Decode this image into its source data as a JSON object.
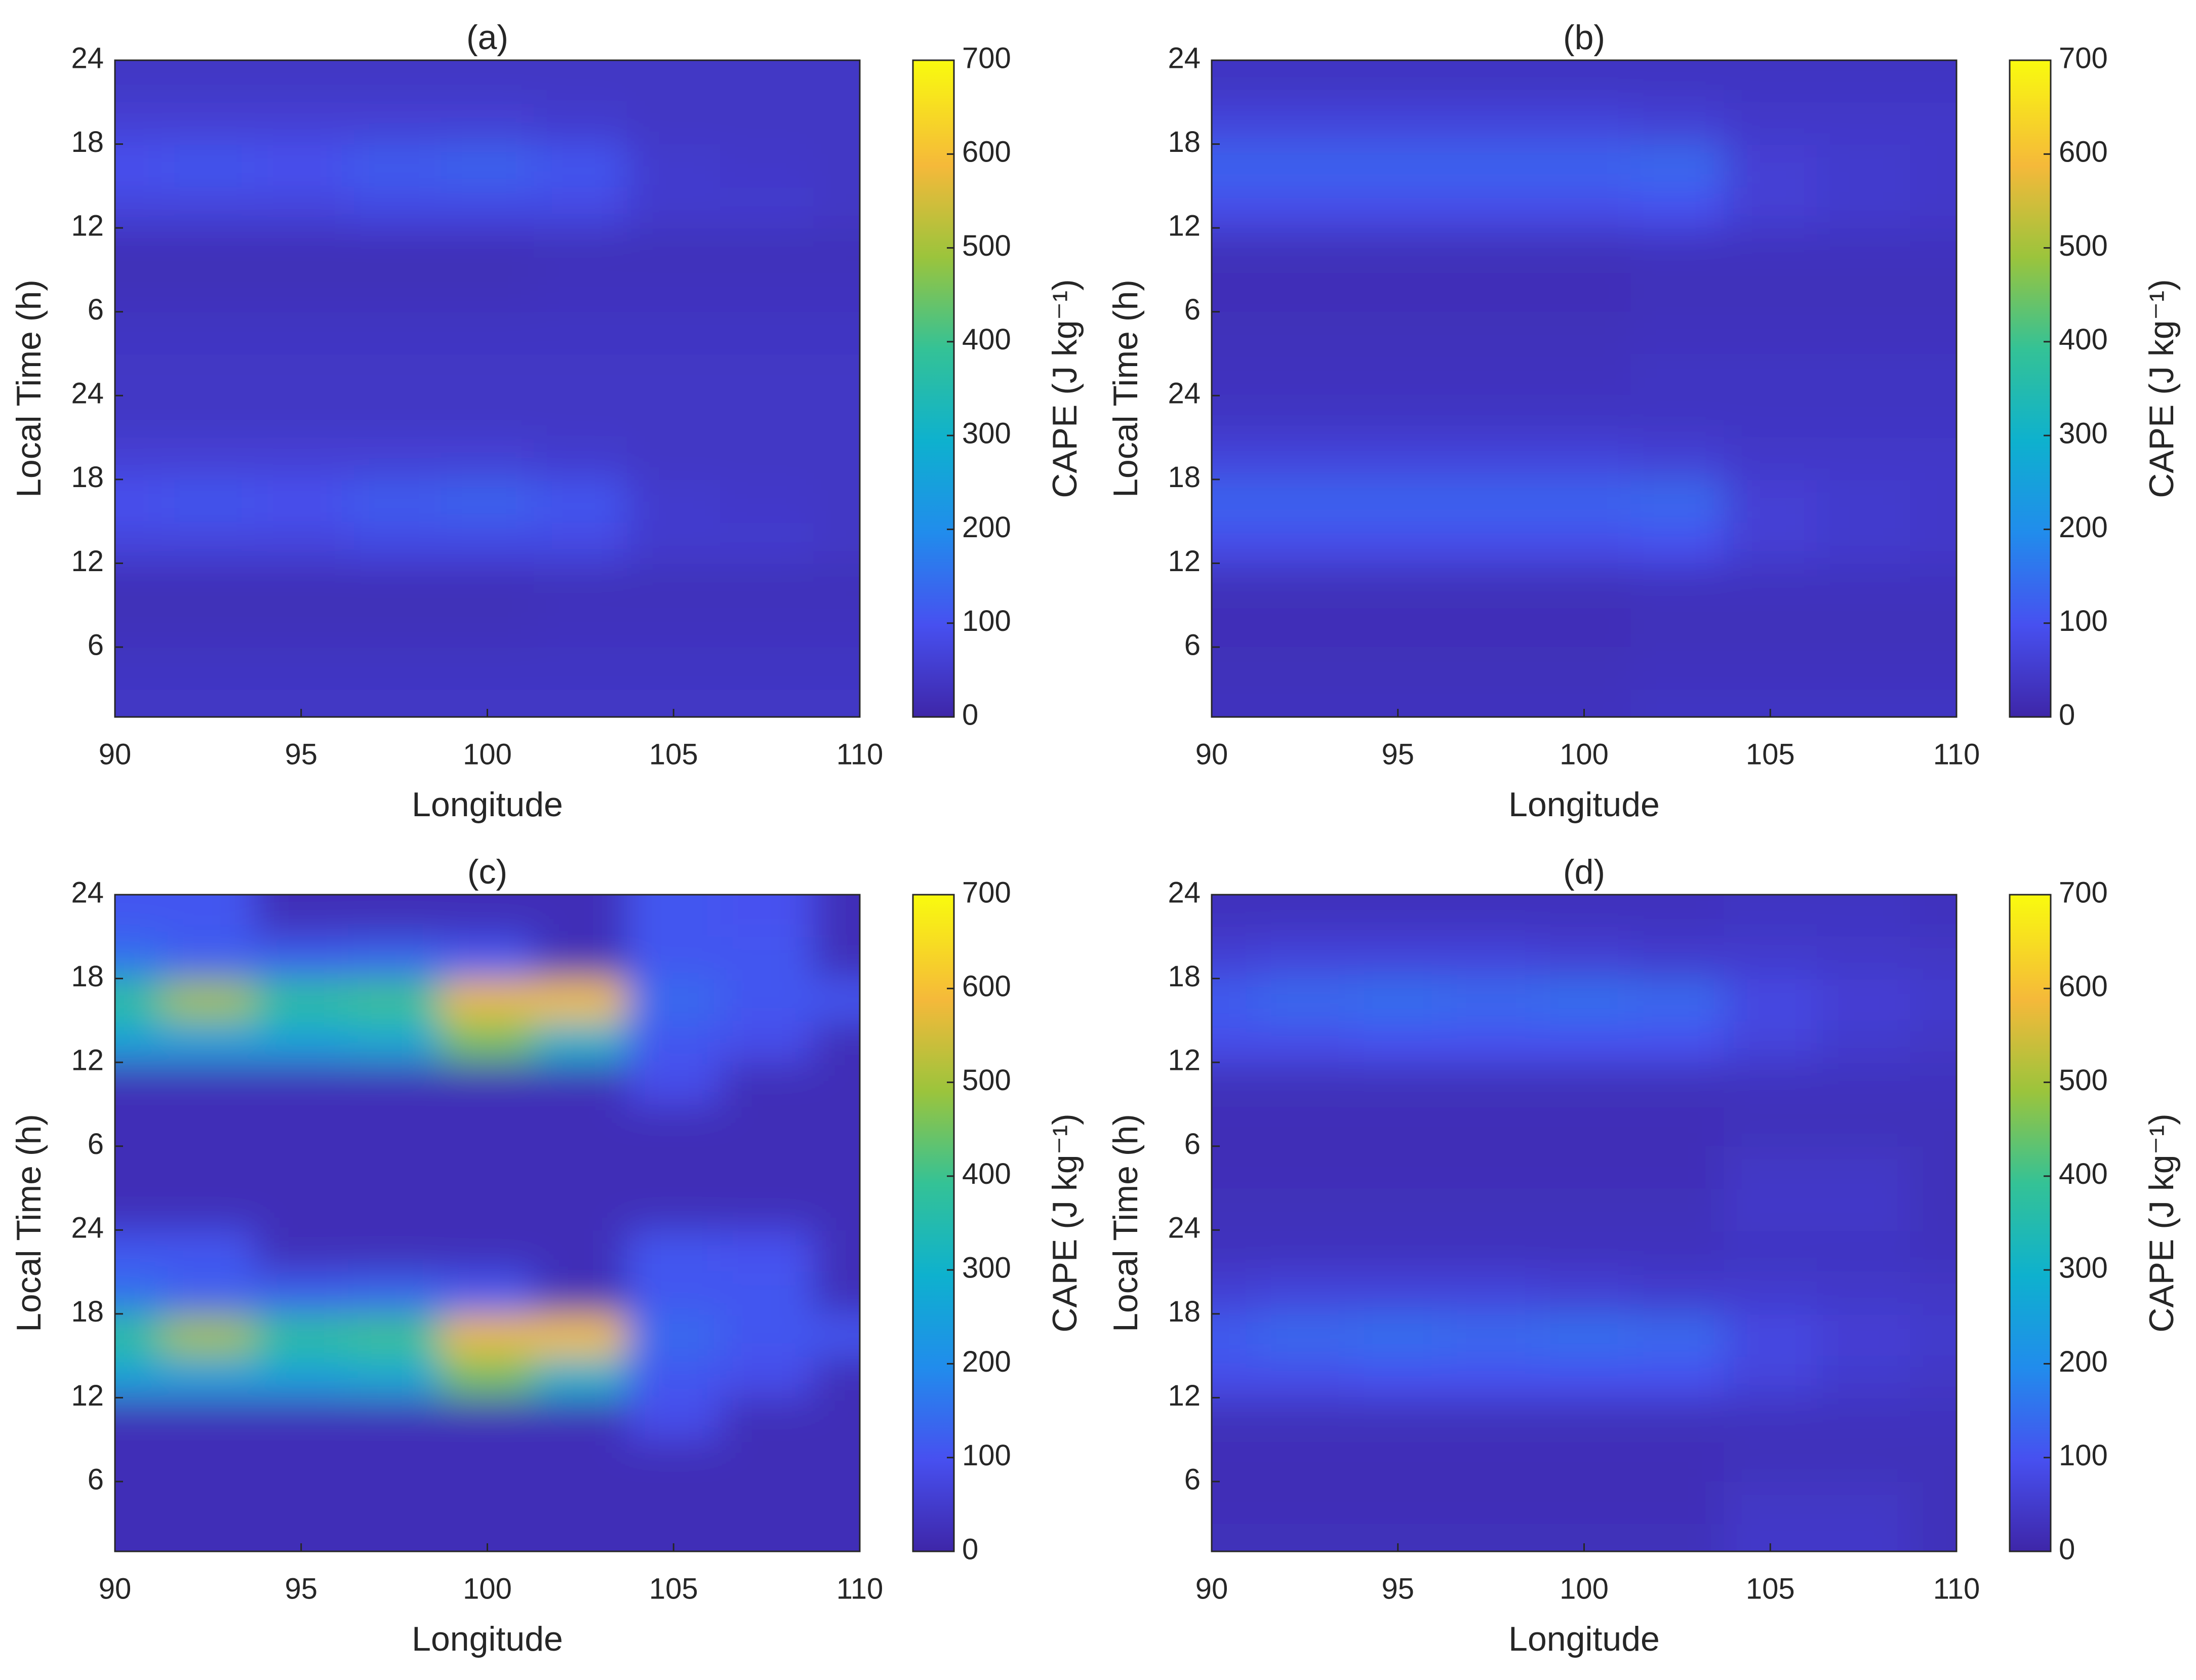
{
  "chart_data": [
    {
      "type": "contour",
      "title": "(a)",
      "x_label": "Longitude",
      "y_label": "Local Time (h)",
      "colorbar_label": "CAPE (J kg⁻¹)",
      "colormap": "parula",
      "lon": [
        90,
        92.5,
        95,
        97.5,
        100,
        102.5,
        105,
        107.5,
        110
      ],
      "hours": [
        1.5,
        4.5,
        7.5,
        10.5,
        13.5,
        16.5,
        19.5,
        22.5
      ],
      "z": [
        [
          40,
          40,
          40,
          40,
          40,
          40,
          40,
          40,
          40
        ],
        [
          35,
          35,
          35,
          35,
          35,
          35,
          35,
          35,
          35
        ],
        [
          25,
          25,
          25,
          25,
          25,
          30,
          30,
          30,
          30
        ],
        [
          20,
          20,
          20,
          20,
          20,
          25,
          25,
          25,
          25
        ],
        [
          70,
          70,
          70,
          80,
          80,
          80,
          50,
          50,
          40
        ],
        [
          100,
          110,
          100,
          120,
          130,
          110,
          50,
          45,
          40
        ],
        [
          60,
          60,
          60,
          60,
          60,
          50,
          40,
          40,
          40
        ],
        [
          40,
          40,
          40,
          40,
          40,
          40,
          40,
          40,
          40
        ]
      ],
      "xlim": [
        90,
        110
      ],
      "ylim": [
        1,
        48
      ],
      "xticks": [
        90,
        95,
        100,
        105,
        110
      ],
      "yticks": [
        6,
        12,
        18,
        24,
        {
          "value": 30,
          "label": "6"
        },
        {
          "value": 36,
          "label": "12"
        },
        {
          "value": 42,
          "label": "18"
        },
        {
          "value": 48,
          "label": "24"
        }
      ],
      "clim": [
        0,
        700
      ],
      "cticks": [
        0,
        100,
        200,
        300,
        400,
        500,
        600,
        700
      ]
    },
    {
      "type": "contour",
      "title": "(b)",
      "x_label": "Longitude",
      "y_label": "Local Time (h)",
      "colorbar_label": "CAPE (J kg⁻¹)",
      "colormap": "parula",
      "lon": [
        90,
        92.5,
        95,
        97.5,
        100,
        102.5,
        105,
        107.5,
        110
      ],
      "hours": [
        1.5,
        4.5,
        7.5,
        10.5,
        13.5,
        16.5,
        19.5,
        22.5
      ],
      "z": [
        [
          30,
          30,
          30,
          30,
          30,
          35,
          35,
          35,
          35
        ],
        [
          25,
          25,
          25,
          25,
          25,
          30,
          30,
          30,
          30
        ],
        [
          20,
          20,
          20,
          20,
          20,
          25,
          25,
          25,
          25
        ],
        [
          25,
          25,
          25,
          25,
          25,
          30,
          30,
          30,
          30
        ],
        [
          90,
          90,
          90,
          90,
          90,
          100,
          60,
          50,
          45
        ],
        [
          130,
          130,
          130,
          130,
          130,
          140,
          60,
          50,
          45
        ],
        [
          70,
          70,
          70,
          70,
          70,
          60,
          45,
          45,
          45
        ],
        [
          35,
          35,
          35,
          35,
          35,
          35,
          35,
          35,
          35
        ]
      ],
      "xlim": [
        90,
        110
      ],
      "ylim": [
        1,
        48
      ],
      "xticks": [
        90,
        95,
        100,
        105,
        110
      ],
      "yticks": [
        6,
        12,
        18,
        24,
        {
          "value": 30,
          "label": "6"
        },
        {
          "value": 36,
          "label": "12"
        },
        {
          "value": 42,
          "label": "18"
        },
        {
          "value": 48,
          "label": "24"
        }
      ],
      "clim": [
        0,
        700
      ],
      "cticks": [
        0,
        100,
        200,
        300,
        400,
        500,
        600,
        700
      ]
    },
    {
      "type": "contour",
      "title": "(c)",
      "x_label": "Longitude",
      "y_label": "Local Time (h)",
      "colorbar_label": "CAPE (J kg⁻¹)",
      "colormap": "parula",
      "lon": [
        90,
        92.5,
        95,
        97.5,
        100,
        102.5,
        105,
        107.5,
        110
      ],
      "hours": [
        1.5,
        4.5,
        7.5,
        10.5,
        13.5,
        16.5,
        19.5,
        22.5
      ],
      "z": [
        [
          20,
          20,
          20,
          20,
          20,
          20,
          20,
          20,
          20
        ],
        [
          20,
          20,
          20,
          20,
          20,
          20,
          20,
          20,
          20
        ],
        [
          20,
          20,
          20,
          20,
          20,
          20,
          20,
          20,
          20
        ],
        [
          20,
          20,
          20,
          20,
          20,
          20,
          90,
          20,
          20
        ],
        [
          250,
          250,
          250,
          270,
          450,
          300,
          110,
          90,
          20
        ],
        [
          380,
          500,
          380,
          400,
          580,
          600,
          140,
          110,
          110
        ],
        [
          150,
          120,
          120,
          130,
          110,
          20,
          110,
          110,
          20
        ],
        [
          110,
          110,
          20,
          20,
          20,
          20,
          110,
          100,
          20
        ]
      ],
      "xlim": [
        90,
        110
      ],
      "ylim": [
        1,
        48
      ],
      "xticks": [
        90,
        95,
        100,
        105,
        110
      ],
      "yticks": [
        6,
        12,
        18,
        24,
        {
          "value": 30,
          "label": "6"
        },
        {
          "value": 36,
          "label": "12"
        },
        {
          "value": 42,
          "label": "18"
        },
        {
          "value": 48,
          "label": "24"
        }
      ],
      "clim": [
        0,
        700
      ],
      "cticks": [
        0,
        100,
        200,
        300,
        400,
        500,
        600,
        700
      ]
    },
    {
      "type": "contour",
      "title": "(d)",
      "x_label": "Longitude",
      "y_label": "Local Time (h)",
      "colorbar_label": "CAPE (J kg⁻¹)",
      "colormap": "parula",
      "lon": [
        90,
        92.5,
        95,
        97.5,
        100,
        102.5,
        105,
        107.5,
        110
      ],
      "hours": [
        1.5,
        4.5,
        7.5,
        10.5,
        13.5,
        16.5,
        19.5,
        22.5
      ],
      "z": [
        [
          25,
          25,
          25,
          25,
          25,
          25,
          45,
          45,
          25
        ],
        [
          20,
          20,
          20,
          20,
          20,
          20,
          40,
          40,
          25
        ],
        [
          20,
          20,
          20,
          20,
          20,
          20,
          25,
          25,
          25
        ],
        [
          25,
          25,
          25,
          25,
          25,
          25,
          30,
          30,
          30
        ],
        [
          90,
          90,
          100,
          100,
          100,
          100,
          70,
          50,
          40
        ],
        [
          120,
          140,
          150,
          140,
          150,
          140,
          80,
          60,
          50
        ],
        [
          60,
          70,
          70,
          70,
          60,
          50,
          50,
          45,
          40
        ],
        [
          30,
          30,
          30,
          30,
          30,
          30,
          35,
          35,
          30
        ]
      ],
      "xlim": [
        90,
        110
      ],
      "ylim": [
        1,
        48
      ],
      "xticks": [
        90,
        95,
        100,
        105,
        110
      ],
      "yticks": [
        6,
        12,
        18,
        24,
        {
          "value": 30,
          "label": "6"
        },
        {
          "value": 36,
          "label": "12"
        },
        {
          "value": 42,
          "label": "18"
        },
        {
          "value": 48,
          "label": "24"
        }
      ],
      "clim": [
        0,
        700
      ],
      "cticks": [
        0,
        100,
        200,
        300,
        400,
        500,
        600,
        700
      ]
    }
  ]
}
